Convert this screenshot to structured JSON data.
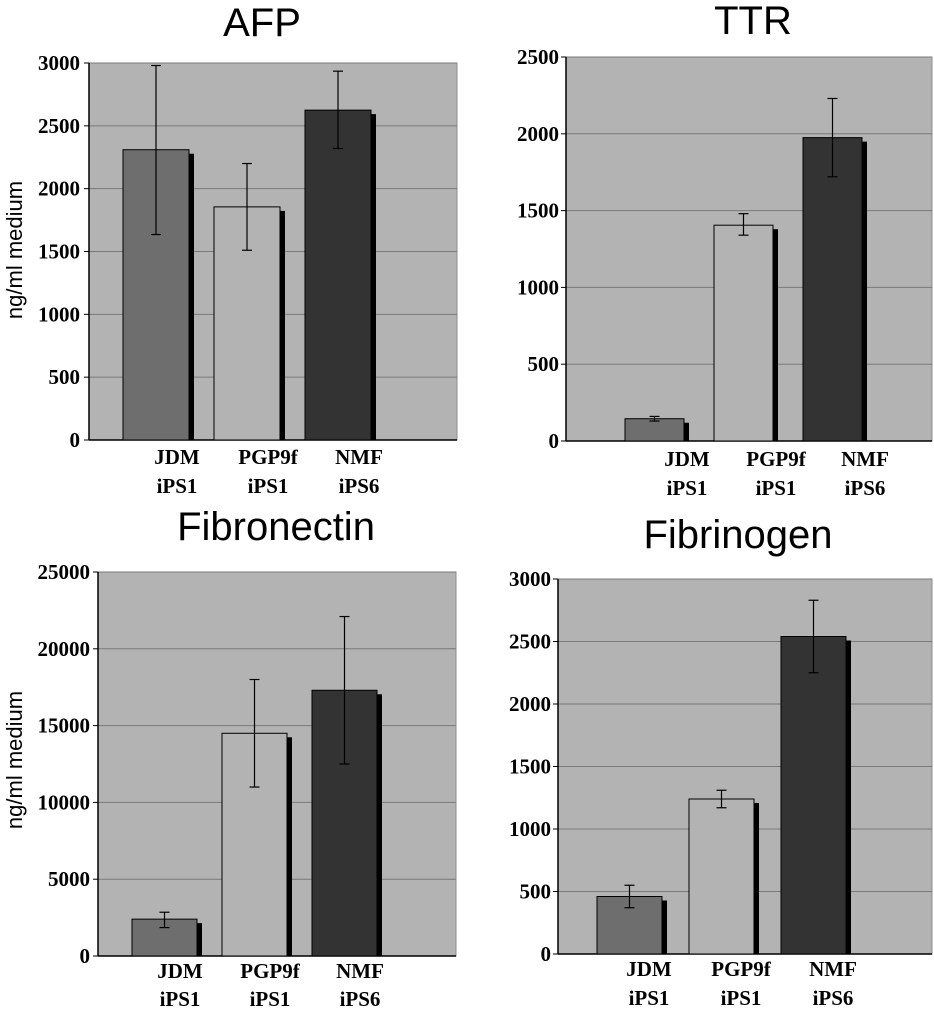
{
  "chart_data": [
    {
      "type": "bar",
      "title": "AFP",
      "ylabel": "ng/ml medium",
      "ylim": [
        0,
        3000
      ],
      "yticks": [
        "0",
        "500",
        "1000",
        "1500",
        "2000",
        "2500",
        "3000"
      ],
      "categories": [
        [
          "JDM",
          "iPS1"
        ],
        [
          "PGP9f",
          "iPS1"
        ],
        [
          "NMF",
          "iPS6"
        ]
      ],
      "values": [
        2310,
        1855,
        2625
      ],
      "errors": [
        [
          1635,
          2980
        ],
        [
          1510,
          2200
        ],
        [
          2320,
          2935
        ]
      ],
      "grid": true
    },
    {
      "type": "bar",
      "title": "TTR",
      "ylabel": "",
      "ylim": [
        0,
        2500
      ],
      "yticks": [
        "0",
        "500",
        "1000",
        "1500",
        "2000",
        "2500"
      ],
      "categories": [
        [
          "JDM",
          "iPS1"
        ],
        [
          "PGP9f",
          "iPS1"
        ],
        [
          "NMF",
          "iPS6"
        ]
      ],
      "values": [
        145,
        1405,
        1975
      ],
      "errors": [
        [
          130,
          160
        ],
        [
          1340,
          1480
        ],
        [
          1720,
          2230
        ]
      ],
      "grid": true
    },
    {
      "type": "bar",
      "title": "Fibronectin",
      "ylabel": "ng/ml medium",
      "ylim": [
        0,
        25000
      ],
      "yticks": [
        "0",
        "5000",
        "10000",
        "15000",
        "20000",
        "25000"
      ],
      "categories": [
        [
          "JDM",
          "iPS1"
        ],
        [
          "PGP9f",
          "iPS1"
        ],
        [
          "NMF",
          "iPS6"
        ]
      ],
      "values": [
        2400,
        14500,
        17300
      ],
      "errors": [
        [
          1850,
          2850
        ],
        [
          11000,
          18000
        ],
        [
          12500,
          22100
        ]
      ],
      "grid": true
    },
    {
      "type": "bar",
      "title": "Fibrinogen",
      "ylabel": "",
      "ylim": [
        0,
        3000
      ],
      "yticks": [
        "0",
        "500",
        "1000",
        "1500",
        "2000",
        "2500",
        "3000"
      ],
      "categories": [
        [
          "JDM",
          "iPS1"
        ],
        [
          "PGP9f",
          "iPS1"
        ],
        [
          "NMF",
          "iPS6"
        ]
      ],
      "values": [
        460,
        1240,
        2540
      ],
      "errors": [
        [
          370,
          550
        ],
        [
          1170,
          1310
        ],
        [
          2250,
          2830
        ]
      ],
      "grid": true
    }
  ],
  "colors": {
    "plot_bg": "#b3b3b3",
    "grid": "#7a7a7a",
    "bars": [
      "#6e6e6e",
      "#b3b3b3",
      "#333333"
    ],
    "shadow": "#000000"
  }
}
